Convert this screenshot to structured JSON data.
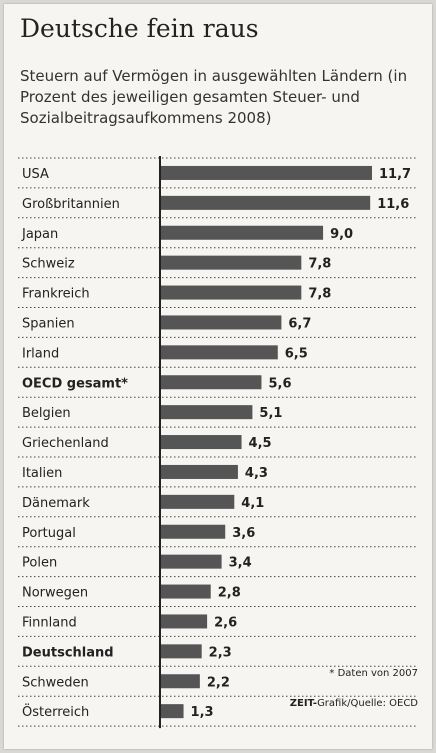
{
  "chart_data": {
    "type": "bar",
    "orientation": "horizontal",
    "title": "Deutsche fein raus",
    "subtitle": "Steuern auf Vermögen in ausgewählten Ländern (in Prozent des jeweiligen gesamten Steuer- und Sozialbeitragsaufkommens 2008)",
    "categories": [
      "USA",
      "Großbritannien",
      "Japan",
      "Schweiz",
      "Frankreich",
      "Spanien",
      "Irland",
      "OECD gesamt*",
      "Belgien",
      "Griechenland",
      "Italien",
      "Dänemark",
      "Portugal",
      "Polen",
      "Norwegen",
      "Finnland",
      "Deutschland",
      "Schweden",
      "Österreich"
    ],
    "values": [
      11.7,
      11.6,
      9.0,
      7.8,
      7.8,
      6.7,
      6.5,
      5.6,
      5.1,
      4.5,
      4.3,
      4.1,
      3.6,
      3.4,
      2.8,
      2.6,
      2.3,
      2.2,
      1.3
    ],
    "value_labels": [
      "11,7",
      "11,6",
      "9,0",
      "7,8",
      "7,8",
      "6,7",
      "6,5",
      "5,6",
      "5,1",
      "4,5",
      "4,3",
      "4,1",
      "3,6",
      "3,4",
      "2,8",
      "2,6",
      "2,3",
      "2,2",
      "1,3"
    ],
    "bold_categories": [
      "OECD gesamt*",
      "Deutschland"
    ],
    "xlim": [
      0,
      11.7
    ],
    "bar_color": "#555555",
    "grid": false
  },
  "footnote": "* Daten von 2007",
  "source_brand": "ZEIT-",
  "source_text": "Grafik/Quelle: OECD"
}
